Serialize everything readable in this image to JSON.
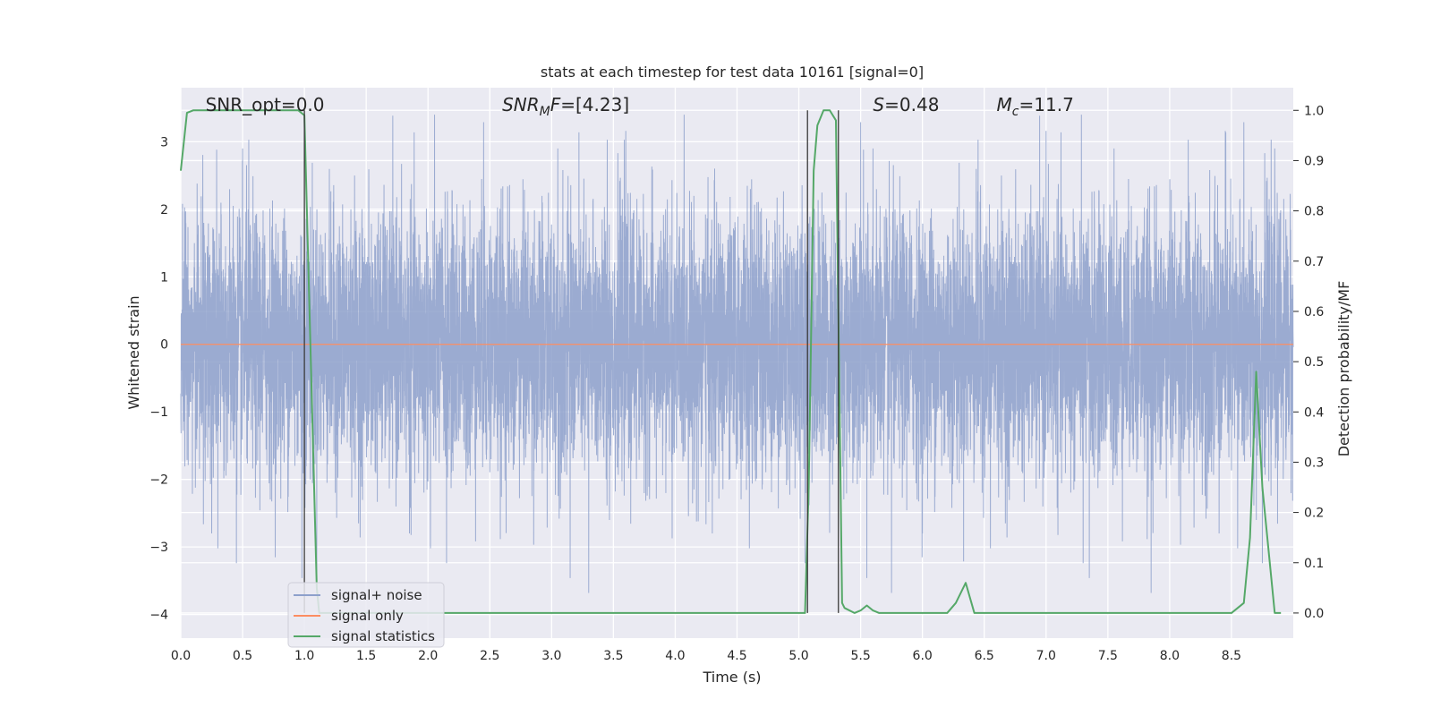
{
  "chart_data": {
    "type": "line",
    "title": "stats at each timestep for test data 10161 [signal=0]",
    "xlabel": "Time (s)",
    "ylabel": "Whitened strain",
    "ylabel_right": "Detection probability/MF",
    "xlim": [
      0,
      9.0
    ],
    "ylim": [
      -4.35,
      3.8
    ],
    "ylim_right": [
      -0.05,
      1.045
    ],
    "x_ticks": [
      0.0,
      0.5,
      1.0,
      1.5,
      2.0,
      2.5,
      3.0,
      3.5,
      4.0,
      4.5,
      5.0,
      5.5,
      6.0,
      6.5,
      7.0,
      7.5,
      8.0,
      8.5
    ],
    "x_tick_labels": [
      "0.0",
      "0.5",
      "1.0",
      "1.5",
      "2.0",
      "2.5",
      "3.0",
      "3.5",
      "4.0",
      "4.5",
      "5.0",
      "5.5",
      "6.0",
      "6.5",
      "7.0",
      "7.5",
      "8.0",
      "8.5"
    ],
    "y_ticks": [
      -4,
      -3,
      -2,
      -1,
      0,
      1,
      2,
      3
    ],
    "y_tick_labels": [
      "−4",
      "−3",
      "−2",
      "−1",
      "0",
      "1",
      "2",
      "3"
    ],
    "y_ticks_right": [
      0.0,
      0.1,
      0.2,
      0.3,
      0.4,
      0.5,
      0.6,
      0.7,
      0.8,
      0.9,
      1.0
    ],
    "y_tick_labels_right": [
      "0.0",
      "0.1",
      "0.2",
      "0.3",
      "0.4",
      "0.5",
      "0.6",
      "0.7",
      "0.8",
      "0.9",
      "1.0"
    ],
    "grid": true,
    "legend_position": "lower-left",
    "annotations": [
      {
        "text": "SNR_opt=0.0",
        "x": 0.2
      },
      {
        "text": "SNR_MF=[4.23]",
        "x": 2.6,
        "html": "mf"
      },
      {
        "text": "S=0.48",
        "x": 5.6,
        "html": "s"
      },
      {
        "text": "M_c=11.7",
        "x": 6.6,
        "html": "mc"
      }
    ],
    "vertical_lines": [
      1.0,
      5.07,
      5.32
    ],
    "vertical_line_range": [
      0.0,
      1.0
    ],
    "series": [
      {
        "name": "signal+ noise",
        "color": "#8da0cb",
        "kind": "noise",
        "sampling_rate_hz": 1000,
        "amplitude_std": 1.0,
        "peak_extent": [
          -3.9,
          3.4
        ],
        "spike_times_up": [
          0.5,
          0.55,
          1.85,
          2.45,
          3.05,
          3.45,
          3.6,
          5.5,
          5.6,
          6.45,
          7.0,
          7.3,
          7.55,
          8.15,
          8.45,
          8.6,
          8.85
        ],
        "spike_times_down": [
          0.25,
          0.3,
          0.45,
          0.98,
          1.1,
          1.85,
          2.02,
          2.15,
          3.15,
          3.3,
          4.3,
          4.6,
          5.05,
          5.55,
          5.75,
          6.0,
          6.55,
          7.3,
          7.35,
          7.85,
          8.4,
          8.55,
          8.75
        ]
      },
      {
        "name": "signal only",
        "color": "#fc8d62",
        "kind": "constant",
        "value": 0.0
      },
      {
        "name": "signal statistics",
        "color": "#55a868",
        "kind": "line",
        "axis": "right",
        "x": [
          0.0,
          0.05,
          0.1,
          0.95,
          1.0,
          1.1,
          1.12,
          1.2,
          5.05,
          5.08,
          5.12,
          5.15,
          5.2,
          5.25,
          5.3,
          5.35,
          5.37,
          5.45,
          5.5,
          5.55,
          5.6,
          5.65,
          5.7,
          5.8,
          6.2,
          6.27,
          6.35,
          6.42,
          6.5,
          8.5,
          8.6,
          8.65,
          8.7,
          8.75,
          8.85,
          8.9
        ],
        "y": [
          0.88,
          0.995,
          1.0,
          1.0,
          0.99,
          0.05,
          0.0,
          0.0,
          0.0,
          0.25,
          0.88,
          0.97,
          1.0,
          1.0,
          0.98,
          0.02,
          0.01,
          0.0,
          0.005,
          0.015,
          0.005,
          0.0,
          0.0,
          0.0,
          0.0,
          0.02,
          0.06,
          0.0,
          0.0,
          0.0,
          0.02,
          0.15,
          0.48,
          0.25,
          0.0,
          0.0
        ]
      }
    ]
  }
}
